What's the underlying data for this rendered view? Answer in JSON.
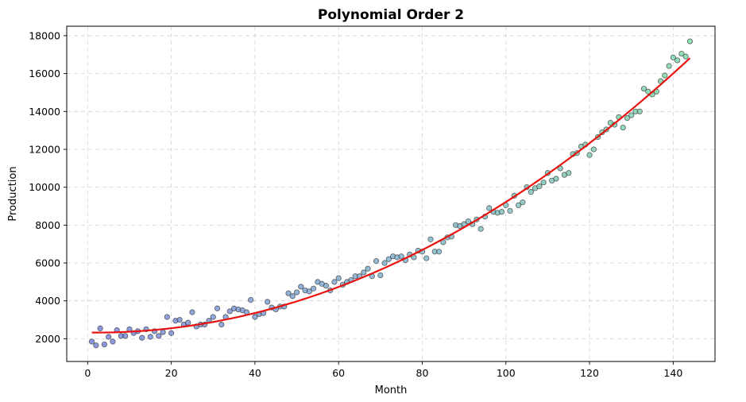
{
  "chart_data": {
    "type": "scatter",
    "title": "Polynomial Order 2",
    "xlabel": "Month",
    "ylabel": "Production",
    "xlim": [
      -5,
      150
    ],
    "ylim": [
      800,
      18500
    ],
    "xticks": [
      0,
      20,
      40,
      60,
      80,
      100,
      120,
      140
    ],
    "yticks": [
      2000,
      4000,
      6000,
      8000,
      10000,
      12000,
      14000,
      16000,
      18000
    ],
    "grid": true,
    "colors": {
      "low": "#6673d6",
      "mid": "#72a8c8",
      "high": "#6fd39b",
      "fit": "#e8130f"
    },
    "series": [
      {
        "kind": "points",
        "x": [
          1,
          2,
          3,
          4,
          5,
          6,
          7,
          8,
          9,
          10,
          11,
          12,
          13,
          14,
          15,
          16,
          17,
          18,
          19,
          20,
          21,
          22,
          23,
          24,
          25,
          26,
          27,
          28,
          29,
          30,
          31,
          32,
          33,
          34,
          35,
          36,
          37,
          38,
          39,
          40,
          41,
          42,
          43,
          44,
          45,
          46,
          47,
          48,
          49,
          50,
          51,
          52,
          53,
          54,
          55,
          56,
          57,
          58,
          59,
          60,
          61,
          62,
          63,
          64,
          65,
          66,
          67,
          68,
          69,
          70,
          71,
          72,
          73,
          74,
          75,
          76,
          77,
          78,
          79,
          80,
          81,
          82,
          83,
          84,
          85,
          86,
          87,
          88,
          89,
          90,
          91,
          92,
          93,
          94,
          95,
          96,
          97,
          98,
          99,
          100,
          101,
          102,
          103,
          104,
          105,
          106,
          107,
          108,
          109,
          110,
          111,
          112,
          113,
          114,
          115,
          116,
          117,
          118,
          119,
          120,
          121,
          122,
          123,
          124,
          125,
          126,
          127,
          128,
          129,
          130,
          131,
          132,
          133,
          134,
          135,
          136,
          137,
          138,
          139,
          140,
          141,
          142,
          143,
          144
        ],
        "y": [
          1850,
          1650,
          2550,
          1700,
          2100,
          1850,
          2450,
          2150,
          2150,
          2500,
          2300,
          2400,
          2050,
          2500,
          2100,
          2400,
          2150,
          2350,
          3150,
          2300,
          2950,
          3000,
          2750,
          2850,
          3400,
          2650,
          2750,
          2750,
          2950,
          3150,
          3600,
          2750,
          3150,
          3450,
          3600,
          3550,
          3500,
          3400,
          4050,
          3150,
          3300,
          3350,
          3950,
          3650,
          3550,
          3700,
          3700,
          4400,
          4250,
          4450,
          4750,
          4550,
          4500,
          4650,
          5000,
          4900,
          4800,
          4550,
          5000,
          5200,
          4850,
          5000,
          5100,
          5300,
          5300,
          5500,
          5700,
          5300,
          6100,
          5350,
          6000,
          6200,
          6350,
          6300,
          6350,
          6150,
          6450,
          6300,
          6650,
          6600,
          6250,
          7250,
          6600,
          6600,
          7100,
          7350,
          7400,
          8000,
          7950,
          8050,
          8200,
          8050,
          8300,
          7800,
          8450,
          8900,
          8700,
          8650,
          8700,
          9050,
          8750,
          9550,
          9050,
          9200,
          10000,
          9750,
          9950,
          10050,
          10250,
          10750,
          10350,
          10450,
          11000,
          10650,
          10750,
          11750,
          11800,
          12150,
          12250,
          11700,
          12000,
          12650,
          12900,
          13050,
          13400,
          13300,
          13700,
          13150,
          13650,
          13800,
          14000,
          14000,
          15200,
          15050,
          14900,
          15050,
          15600,
          15900,
          16400,
          16850,
          16700,
          17050,
          16900,
          17700
        ]
      },
      {
        "kind": "fit-curve",
        "coefficients": [
          2330,
          -3.1,
          0.72
        ]
      }
    ]
  }
}
